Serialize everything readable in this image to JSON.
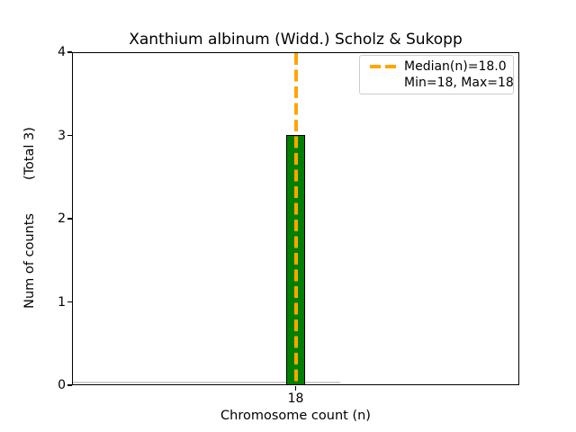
{
  "figure": {
    "title": "Xanthium albinum (Widd.) Scholz & Sukopp",
    "xlabel": "Chromosome count (n)",
    "ylabel": "Num of counts        (Total 3)",
    "x_ticks": [
      "18"
    ],
    "y_ticks": [
      "0",
      "1",
      "2",
      "3",
      "4"
    ]
  },
  "legend": {
    "entries": [
      {
        "label": "Median(n)=18.0",
        "marker": "orange-dashed-line"
      },
      {
        "label": "Min=18, Max=18",
        "marker": "none"
      }
    ]
  },
  "colors": {
    "bar_fill": "#008000",
    "bar_edge": "#000000",
    "median_line": "#FFA500",
    "zero_baseline": "#cfcfcf",
    "legend_border": "#cccccc",
    "background": "#ffffff",
    "text": "#000000"
  },
  "chart_data": {
    "type": "bar",
    "title": "Xanthium albinum (Widd.) Scholz & Sukopp",
    "xlabel": "Chromosome count (n)",
    "ylabel": "Num of counts (Total 3)",
    "categories": [
      18
    ],
    "values": [
      3
    ],
    "total_counts": 3,
    "median_n": 18.0,
    "min_n": 18,
    "max_n": 18,
    "ylim": [
      0,
      4
    ],
    "y_tick_values": [
      0,
      1,
      2,
      3,
      4
    ],
    "x_tick_values": [
      18
    ],
    "grid": false,
    "legend_position": "upper right",
    "legend_entries": [
      "Median(n)=18.0",
      "Min=18, Max=18"
    ],
    "bar_color": "#008000",
    "bar_edge_color": "#000000",
    "median_line_style": "dashed",
    "median_line_color": "#FFA500"
  }
}
